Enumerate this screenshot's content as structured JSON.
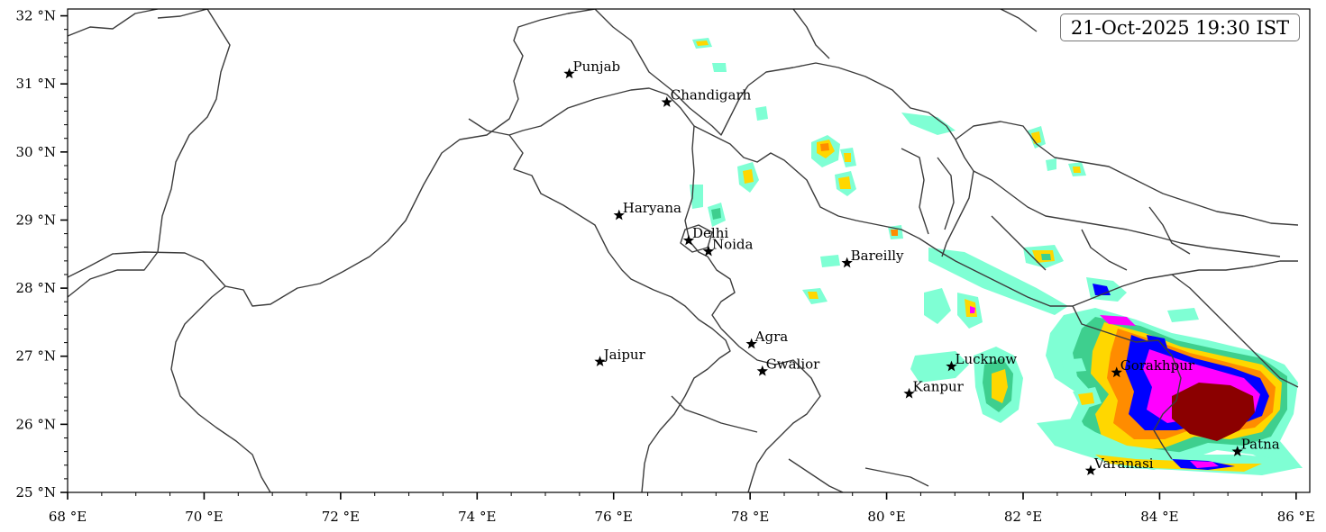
{
  "timestamp": "21-Oct-2025 19:30 IST",
  "axes": {
    "x_ticks": [
      "68 °E",
      "70 °E",
      "72 °E",
      "74 °E",
      "76 °E",
      "78 °E",
      "80 °E",
      "82 °E",
      "84 °E",
      "86 °E"
    ],
    "y_ticks": [
      "25 °N",
      "26 °N",
      "27 °N",
      "28 °N",
      "29 °N",
      "30 °N",
      "31 °N",
      "32 °N"
    ],
    "lon_range": [
      68,
      86.2
    ],
    "lat_range": [
      25,
      32.1
    ]
  },
  "cities": [
    {
      "name": "Punjab",
      "lon": 75.35,
      "lat": 31.15
    },
    {
      "name": "Chandigarh",
      "lon": 76.78,
      "lat": 30.73
    },
    {
      "name": "Haryana",
      "lon": 76.08,
      "lat": 29.07
    },
    {
      "name": "Delhi",
      "lon": 77.1,
      "lat": 28.7
    },
    {
      "name": "Noida",
      "lon": 77.39,
      "lat": 28.54
    },
    {
      "name": "Bareilly",
      "lon": 79.42,
      "lat": 28.37
    },
    {
      "name": "Agra",
      "lon": 78.02,
      "lat": 27.18
    },
    {
      "name": "Jaipur",
      "lon": 75.8,
      "lat": 26.92
    },
    {
      "name": "Gwalior",
      "lon": 78.18,
      "lat": 26.78
    },
    {
      "name": "Lucknow",
      "lon": 80.95,
      "lat": 26.85
    },
    {
      "name": "Kanpur",
      "lon": 80.33,
      "lat": 26.45
    },
    {
      "name": "Gorakhpur",
      "lon": 83.37,
      "lat": 26.76
    },
    {
      "name": "Patna",
      "lon": 85.14,
      "lat": 25.6
    },
    {
      "name": "Varanasi",
      "lon": 82.99,
      "lat": 25.32
    }
  ],
  "colors": {
    "reflectivity_scale": [
      "#7fffd4",
      "#3ecf8e",
      "#ffd700",
      "#ff8c00",
      "#0000ff",
      "#ff00ff",
      "#8b0000"
    ]
  }
}
